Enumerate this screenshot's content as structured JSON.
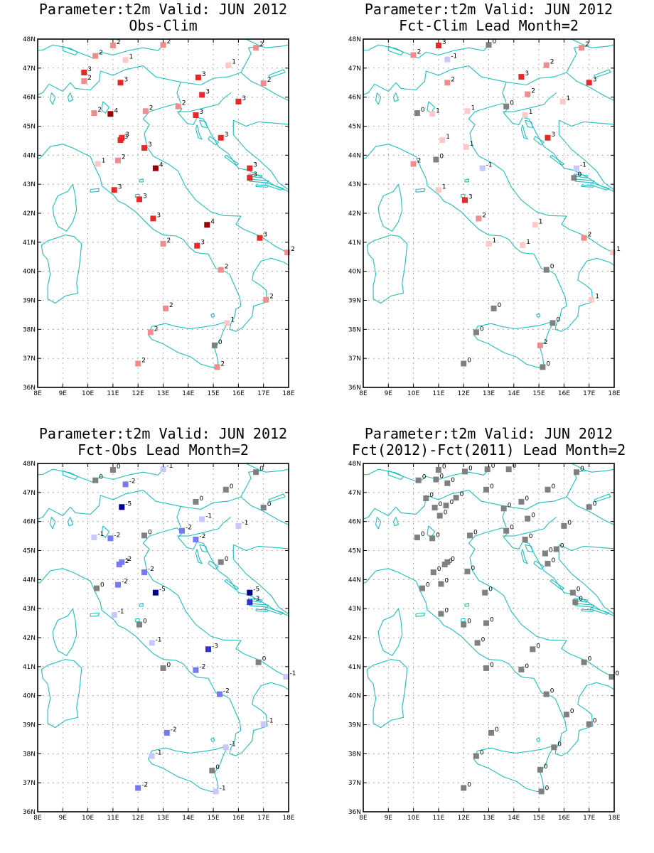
{
  "panels": [
    {
      "title_line1": "Parameter:t2m Valid: JUN 2012",
      "title_line2": "Obs-Clim",
      "stations": [
        [
          11.0,
          47.78,
          2
        ],
        [
          13.0,
          47.8,
          2
        ],
        [
          16.7,
          47.7,
          2
        ],
        [
          10.3,
          47.42,
          2
        ],
        [
          11.5,
          47.28,
          1
        ],
        [
          9.85,
          46.85,
          3
        ],
        [
          9.85,
          46.55,
          2
        ],
        [
          11.3,
          46.5,
          3
        ],
        [
          14.4,
          46.68,
          3
        ],
        [
          15.6,
          47.1,
          1
        ],
        [
          17.0,
          46.48,
          2
        ],
        [
          14.55,
          46.08,
          3
        ],
        [
          16.0,
          45.85,
          3
        ],
        [
          13.6,
          45.68,
          2
        ],
        [
          10.25,
          45.45,
          2
        ],
        [
          10.9,
          45.42,
          4
        ],
        [
          12.3,
          45.52,
          2
        ],
        [
          14.3,
          45.38,
          3
        ],
        [
          11.3,
          44.52,
          3
        ],
        [
          11.35,
          44.6,
          3
        ],
        [
          12.25,
          44.25,
          3
        ],
        [
          15.3,
          44.6,
          3
        ],
        [
          10.4,
          43.7,
          1
        ],
        [
          11.2,
          43.82,
          2
        ],
        [
          12.7,
          43.55,
          4
        ],
        [
          16.45,
          43.55,
          3
        ],
        [
          16.45,
          43.22,
          3
        ],
        [
          11.05,
          42.8,
          3
        ],
        [
          12.05,
          42.48,
          3
        ],
        [
          12.6,
          41.82,
          3
        ],
        [
          14.75,
          41.6,
          4
        ],
        [
          13.0,
          40.95,
          2
        ],
        [
          14.35,
          40.88,
          3
        ],
        [
          16.85,
          41.15,
          3
        ],
        [
          17.95,
          40.65,
          2
        ],
        [
          15.3,
          40.05,
          2
        ],
        [
          17.1,
          39.02,
          2
        ],
        [
          13.1,
          38.72,
          2
        ],
        [
          12.5,
          37.9,
          2
        ],
        [
          15.55,
          38.22,
          1
        ],
        [
          15.05,
          37.45,
          0
        ],
        [
          12.0,
          36.82,
          2
        ],
        [
          15.15,
          36.7,
          2
        ]
      ]
    },
    {
      "title_line1": "Parameter:t2m Valid: JUN 2012",
      "title_line2": "Fct-Clim Lead Month=2",
      "stations": [
        [
          13.0,
          47.8,
          0
        ],
        [
          11.0,
          47.78,
          3
        ],
        [
          16.7,
          47.7,
          2
        ],
        [
          10.0,
          47.45,
          2
        ],
        [
          11.35,
          47.3,
          -1
        ],
        [
          15.3,
          47.1,
          2
        ],
        [
          14.3,
          46.7,
          3
        ],
        [
          11.35,
          46.5,
          2
        ],
        [
          17.0,
          46.5,
          3
        ],
        [
          14.55,
          46.1,
          2
        ],
        [
          13.7,
          45.68,
          0
        ],
        [
          15.95,
          45.85,
          1
        ],
        [
          10.15,
          45.45,
          0
        ],
        [
          10.75,
          45.42,
          1
        ],
        [
          12.15,
          45.52,
          1
        ],
        [
          14.45,
          45.38,
          1
        ],
        [
          11.15,
          44.52,
          1
        ],
        [
          15.35,
          44.6,
          3
        ],
        [
          12.1,
          44.28,
          1
        ],
        [
          10.9,
          43.85,
          0
        ],
        [
          10.0,
          43.7,
          2
        ],
        [
          12.75,
          43.55,
          -1
        ],
        [
          16.5,
          43.55,
          -1
        ],
        [
          16.4,
          43.22,
          0
        ],
        [
          11.0,
          42.8,
          1
        ],
        [
          12.05,
          42.45,
          3
        ],
        [
          12.6,
          41.82,
          2
        ],
        [
          14.85,
          41.6,
          1
        ],
        [
          13.0,
          40.95,
          1
        ],
        [
          14.35,
          40.9,
          1
        ],
        [
          16.8,
          41.15,
          2
        ],
        [
          17.95,
          40.65,
          1
        ],
        [
          15.3,
          40.05,
          0
        ],
        [
          17.1,
          39.02,
          1
        ],
        [
          13.2,
          38.72,
          0
        ],
        [
          15.55,
          38.22,
          0
        ],
        [
          12.5,
          37.9,
          0
        ],
        [
          15.05,
          37.45,
          2
        ],
        [
          12.0,
          36.82,
          0
        ],
        [
          15.15,
          36.7,
          0
        ]
      ]
    },
    {
      "title_line1": "Parameter:t2m Valid: JUN 2012",
      "title_line2": "Fct-Obs Lead Month=2",
      "stations": [
        [
          11.0,
          47.78,
          0
        ],
        [
          13.0,
          47.8,
          -1
        ],
        [
          16.7,
          47.7,
          0
        ],
        [
          10.3,
          47.42,
          0
        ],
        [
          11.5,
          47.28,
          -2
        ],
        [
          15.5,
          47.1,
          0
        ],
        [
          14.3,
          46.68,
          0
        ],
        [
          11.35,
          46.5,
          -5
        ],
        [
          17.0,
          46.48,
          0
        ],
        [
          14.55,
          46.08,
          -1
        ],
        [
          13.75,
          45.68,
          -2
        ],
        [
          16.0,
          45.85,
          -1
        ],
        [
          10.25,
          45.45,
          -1
        ],
        [
          10.9,
          45.42,
          -2
        ],
        [
          12.25,
          45.52,
          0
        ],
        [
          14.3,
          45.38,
          -2
        ],
        [
          11.25,
          44.52,
          -2
        ],
        [
          11.35,
          44.6,
          -2
        ],
        [
          12.25,
          44.25,
          -2
        ],
        [
          15.3,
          44.6,
          0
        ],
        [
          10.35,
          43.7,
          0
        ],
        [
          11.2,
          43.82,
          -2
        ],
        [
          12.7,
          43.55,
          -5
        ],
        [
          16.45,
          43.55,
          -5
        ],
        [
          16.45,
          43.22,
          -3
        ],
        [
          11.05,
          42.78,
          -1
        ],
        [
          12.05,
          42.45,
          0
        ],
        [
          12.55,
          41.82,
          -1
        ],
        [
          14.8,
          41.6,
          -3
        ],
        [
          13.0,
          40.95,
          0
        ],
        [
          14.3,
          40.88,
          -2
        ],
        [
          16.8,
          41.15,
          0
        ],
        [
          17.9,
          40.65,
          -1
        ],
        [
          15.25,
          40.05,
          -2
        ],
        [
          17.0,
          39.02,
          -1
        ],
        [
          13.15,
          38.72,
          -2
        ],
        [
          12.55,
          37.92,
          -1
        ],
        [
          15.5,
          38.22,
          -1
        ],
        [
          14.95,
          37.42,
          0
        ],
        [
          12.0,
          36.82,
          -2
        ],
        [
          15.1,
          36.7,
          -1
        ]
      ]
    },
    {
      "title_line1": "Parameter:t2m Valid: JUN 2012",
      "title_line2": "Fct(2012)-Fct(2011) Lead Month=2",
      "stations": [
        [
          11.0,
          47.78,
          0
        ],
        [
          12.05,
          47.72,
          0
        ],
        [
          12.95,
          47.8,
          0
        ],
        [
          13.8,
          47.8,
          0
        ],
        [
          16.5,
          47.7,
          0
        ],
        [
          10.2,
          47.42,
          0
        ],
        [
          10.9,
          47.45,
          0
        ],
        [
          11.35,
          47.32,
          0
        ],
        [
          10.5,
          46.8,
          0
        ],
        [
          11.7,
          46.82,
          0
        ],
        [
          12.9,
          47.1,
          0
        ],
        [
          15.35,
          47.1,
          0
        ],
        [
          10.85,
          46.48,
          0
        ],
        [
          11.3,
          46.55,
          0
        ],
        [
          13.6,
          46.45,
          0
        ],
        [
          14.3,
          46.68,
          0
        ],
        [
          17.0,
          46.5,
          0
        ],
        [
          11.05,
          46.2,
          0
        ],
        [
          14.55,
          46.1,
          0
        ],
        [
          13.7,
          45.68,
          0
        ],
        [
          16.0,
          45.85,
          0
        ],
        [
          10.15,
          45.45,
          0
        ],
        [
          10.75,
          45.42,
          0
        ],
        [
          12.25,
          45.52,
          0
        ],
        [
          14.45,
          45.38,
          0
        ],
        [
          15.7,
          45.05,
          0
        ],
        [
          15.25,
          44.9,
          0
        ],
        [
          10.8,
          44.25,
          0
        ],
        [
          11.25,
          44.52,
          0
        ],
        [
          11.35,
          44.6,
          0
        ],
        [
          12.15,
          44.28,
          0
        ],
        [
          15.35,
          44.55,
          0
        ],
        [
          10.35,
          43.7,
          0
        ],
        [
          11.1,
          43.85,
          0
        ],
        [
          12.85,
          43.55,
          0
        ],
        [
          16.35,
          43.55,
          0
        ],
        [
          16.45,
          43.22,
          0
        ],
        [
          11.1,
          42.82,
          0
        ],
        [
          12.0,
          42.45,
          0
        ],
        [
          12.9,
          42.5,
          0
        ],
        [
          12.55,
          41.82,
          0
        ],
        [
          14.75,
          41.6,
          0
        ],
        [
          12.9,
          40.95,
          0
        ],
        [
          14.3,
          40.9,
          0
        ],
        [
          16.8,
          41.15,
          0
        ],
        [
          17.9,
          40.65,
          0
        ],
        [
          15.3,
          40.05,
          0
        ],
        [
          16.1,
          39.35,
          0
        ],
        [
          17.0,
          39.02,
          0
        ],
        [
          13.1,
          38.72,
          0
        ],
        [
          12.5,
          37.92,
          0
        ],
        [
          15.6,
          38.22,
          0
        ],
        [
          15.05,
          37.45,
          0
        ],
        [
          12.0,
          36.82,
          0
        ],
        [
          15.1,
          36.7,
          0
        ]
      ]
    }
  ],
  "lon_ticks": [
    "8E",
    "9E",
    "10E",
    "11E",
    "12E",
    "13E",
    "14E",
    "15E",
    "16E",
    "17E",
    "18E"
  ],
  "lat_ticks": [
    "36N",
    "37N",
    "38N",
    "39N",
    "40N",
    "41N",
    "42N",
    "43N",
    "44N",
    "45N",
    "46N",
    "47N",
    "48N"
  ],
  "colors": {
    "coast": "#1fbfbf",
    "neg": {
      "-1": "#c8c8ff",
      "-2": "#7878f0",
      "-3": "#3232d2",
      "-4": "#1414aa",
      "-5": "#00008c"
    },
    "zero": "#808080",
    "pos": {
      "1": "#ffc8c8",
      "2": "#f08c8c",
      "3": "#e62828",
      "4": "#960000",
      "5": "#6e0000"
    }
  }
}
